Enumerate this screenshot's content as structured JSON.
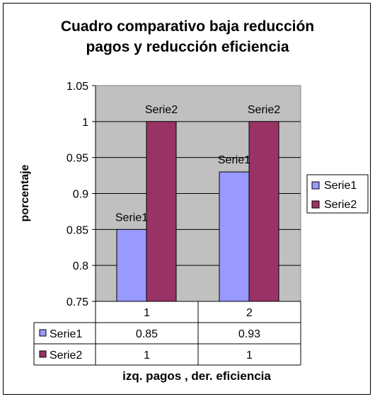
{
  "chart_data": {
    "type": "bar",
    "title_lines": [
      "Cuadro comparativo baja reducción",
      "pagos  y reducción eficiencia"
    ],
    "xlabel": "izq. pagos , der. eficiencia",
    "ylabel": "porcentaje",
    "categories": [
      "1",
      "2"
    ],
    "ylim": [
      0.75,
      1.05
    ],
    "yticks": [
      "0.75",
      "0.8",
      "0.85",
      "0.9",
      "0.95",
      "1",
      "1.05"
    ],
    "series": [
      {
        "name": "Serie1",
        "values": [
          0.85,
          0.93
        ],
        "color": "#9999FF",
        "table_values": [
          "0.85",
          "0.93"
        ]
      },
      {
        "name": "Serie2",
        "values": [
          1,
          1
        ],
        "color": "#993366",
        "table_values": [
          "1",
          "1"
        ]
      }
    ],
    "grid": true,
    "plot_background": "#C0C0C0",
    "legend": "right",
    "data_table": true
  }
}
